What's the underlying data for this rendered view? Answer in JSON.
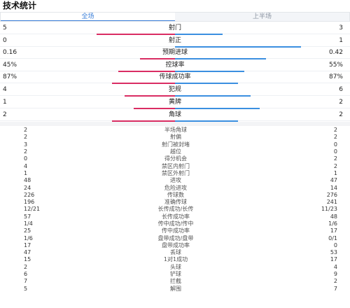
{
  "title": "技术统计",
  "tabs": [
    "全场",
    "上半场"
  ],
  "bar_stats": [
    {
      "label": "射门",
      "left": "5",
      "right": "3",
      "left_frac": 0.62,
      "right_frac": 0.38
    },
    {
      "label": "射正",
      "left": "0",
      "right": "1",
      "left_frac": 0.0,
      "right_frac": 1.0
    },
    {
      "label": "预期进球",
      "left": "0.16",
      "right": "0.42",
      "left_frac": 0.28,
      "right_frac": 0.72
    },
    {
      "label": "控球率",
      "left": "45%",
      "right": "55%",
      "left_frac": 0.45,
      "right_frac": 0.55
    },
    {
      "label": "传球成功率",
      "left": "87%",
      "right": "87%",
      "left_frac": 0.5,
      "right_frac": 0.5
    },
    {
      "label": "犯规",
      "left": "4",
      "right": "6",
      "left_frac": 0.4,
      "right_frac": 0.6
    },
    {
      "label": "黄牌",
      "left": "1",
      "right": "2",
      "left_frac": 0.33,
      "right_frac": 0.67
    },
    {
      "label": "角球",
      "left": "2",
      "right": "2",
      "left_frac": 0.5,
      "right_frac": 0.5
    }
  ],
  "list_stats": [
    {
      "label": "半场角球",
      "left": "2",
      "right": "2"
    },
    {
      "label": "射偏",
      "left": "2",
      "right": "2"
    },
    {
      "label": "射门被封堵",
      "left": "3",
      "right": "0"
    },
    {
      "label": "越位",
      "left": "2",
      "right": "0"
    },
    {
      "label": "得分机会",
      "left": "0",
      "right": "2"
    },
    {
      "label": "禁区内射门",
      "left": "4",
      "right": "2"
    },
    {
      "label": "禁区外射门",
      "left": "1",
      "right": "1"
    },
    {
      "label": "进攻",
      "left": "48",
      "right": "47"
    },
    {
      "label": "危险进攻",
      "left": "24",
      "right": "14"
    },
    {
      "label": "传球数",
      "left": "226",
      "right": "276"
    },
    {
      "label": "准确传球",
      "left": "196",
      "right": "241"
    },
    {
      "label": "长传成功/长传",
      "left": "12/21",
      "right": "11/23"
    },
    {
      "label": "长传成功率",
      "left": "57",
      "right": "48"
    },
    {
      "label": "传中成功/传中",
      "left": "1/4",
      "right": "1/6"
    },
    {
      "label": "传中成功率",
      "left": "25",
      "right": "17"
    },
    {
      "label": "盘带成功/盘带",
      "left": "1/6",
      "right": "0/1"
    },
    {
      "label": "盘带成功率",
      "left": "17",
      "right": "0"
    },
    {
      "label": "丢球",
      "left": "47",
      "right": "53"
    },
    {
      "label": "1对1成功",
      "left": "15",
      "right": "17"
    },
    {
      "label": "头球",
      "left": "2",
      "right": "4"
    },
    {
      "label": "铲球",
      "left": "6",
      "right": "9"
    },
    {
      "label": "拦截",
      "left": "7",
      "right": "2"
    },
    {
      "label": "解围",
      "left": "5",
      "right": "7"
    }
  ],
  "colors": {
    "home": "#d92d63",
    "away": "#3b8fe0",
    "tab_active": "#3b7fd9"
  }
}
